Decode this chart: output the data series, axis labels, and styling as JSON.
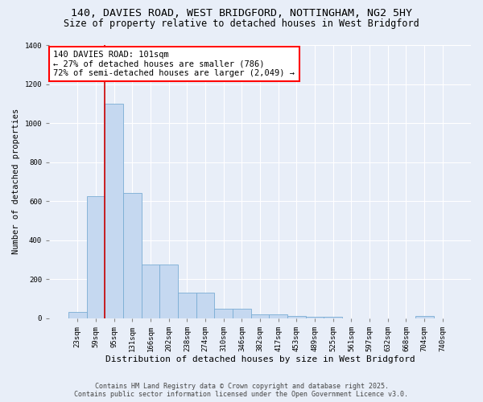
{
  "title_line1": "140, DAVIES ROAD, WEST BRIDGFORD, NOTTINGHAM, NG2 5HY",
  "title_line2": "Size of property relative to detached houses in West Bridgford",
  "xlabel": "Distribution of detached houses by size in West Bridgford",
  "ylabel": "Number of detached properties",
  "categories": [
    "23sqm",
    "59sqm",
    "95sqm",
    "131sqm",
    "166sqm",
    "202sqm",
    "238sqm",
    "274sqm",
    "310sqm",
    "346sqm",
    "382sqm",
    "417sqm",
    "453sqm",
    "489sqm",
    "525sqm",
    "561sqm",
    "597sqm",
    "632sqm",
    "668sqm",
    "704sqm",
    "740sqm"
  ],
  "values": [
    30,
    625,
    1100,
    640,
    275,
    275,
    130,
    130,
    50,
    50,
    20,
    20,
    10,
    5,
    5,
    0,
    0,
    0,
    0,
    10,
    0
  ],
  "bar_color": "#c5d8f0",
  "bar_edge_color": "#7aadd4",
  "vline_color": "#cc0000",
  "annotation_title": "140 DAVIES ROAD: 101sqm",
  "annotation_line2": "← 27% of detached houses are smaller (786)",
  "annotation_line3": "72% of semi-detached houses are larger (2,049) →",
  "ylim": [
    0,
    1400
  ],
  "yticks": [
    0,
    200,
    400,
    600,
    800,
    1000,
    1200,
    1400
  ],
  "bg_color": "#e8eef8",
  "plot_bg_color": "#e8eef8",
  "footer_line1": "Contains HM Land Registry data © Crown copyright and database right 2025.",
  "footer_line2": "Contains public sector information licensed under the Open Government Licence v3.0.",
  "title_fontsize": 9.5,
  "subtitle_fontsize": 8.5,
  "tick_fontsize": 6.5,
  "xlabel_fontsize": 8,
  "ylabel_fontsize": 7.5,
  "annotation_fontsize": 7.5,
  "footer_fontsize": 6
}
